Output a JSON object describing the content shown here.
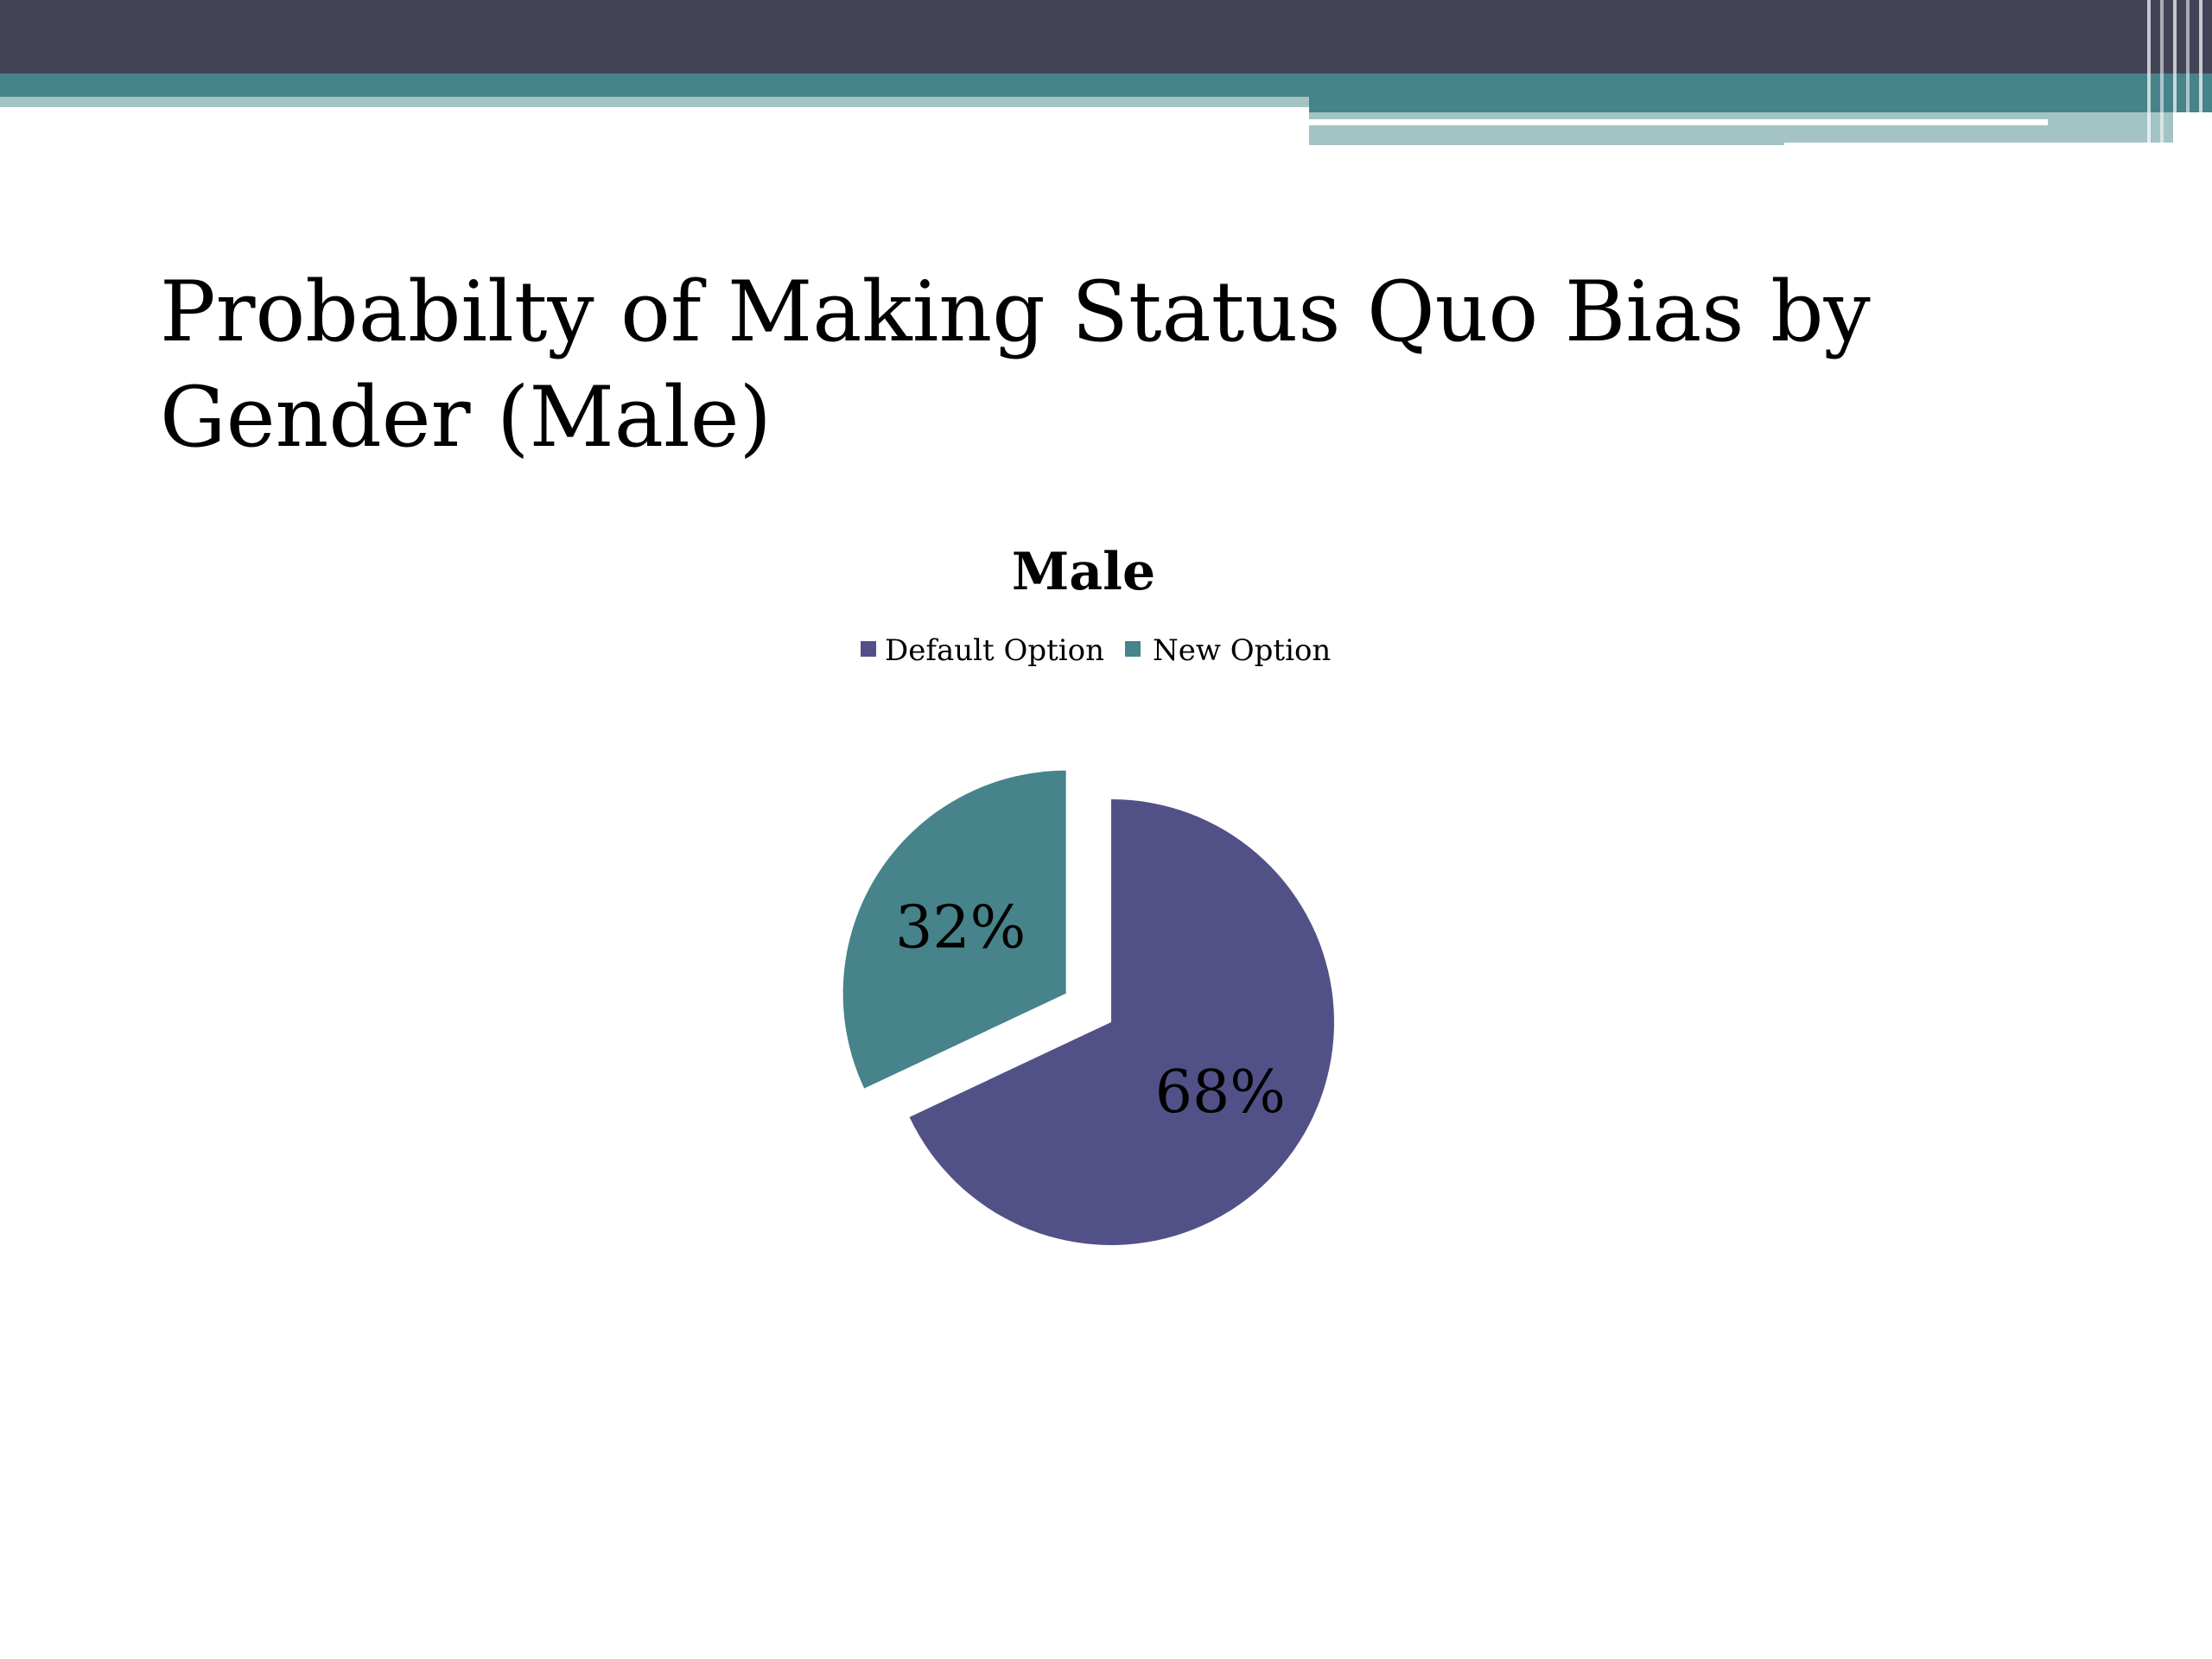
{
  "slide": {
    "title": "Probabilty of Making Status Quo Bias by Gender (Male)"
  },
  "theme": {
    "header_dark": "#434357",
    "header_teal": "#46838A",
    "header_light": "#A4C3C4",
    "default_color": "#525187",
    "new_color": "#46838A"
  },
  "chart_data": {
    "type": "pie",
    "title": "Male",
    "legend_position": "top",
    "exploded": true,
    "slices": [
      {
        "name": "Default Option",
        "value": 68,
        "label": "68%",
        "color": "#525187"
      },
      {
        "name": "New Option",
        "value": 32,
        "label": "32%",
        "color": "#46838A"
      }
    ]
  }
}
